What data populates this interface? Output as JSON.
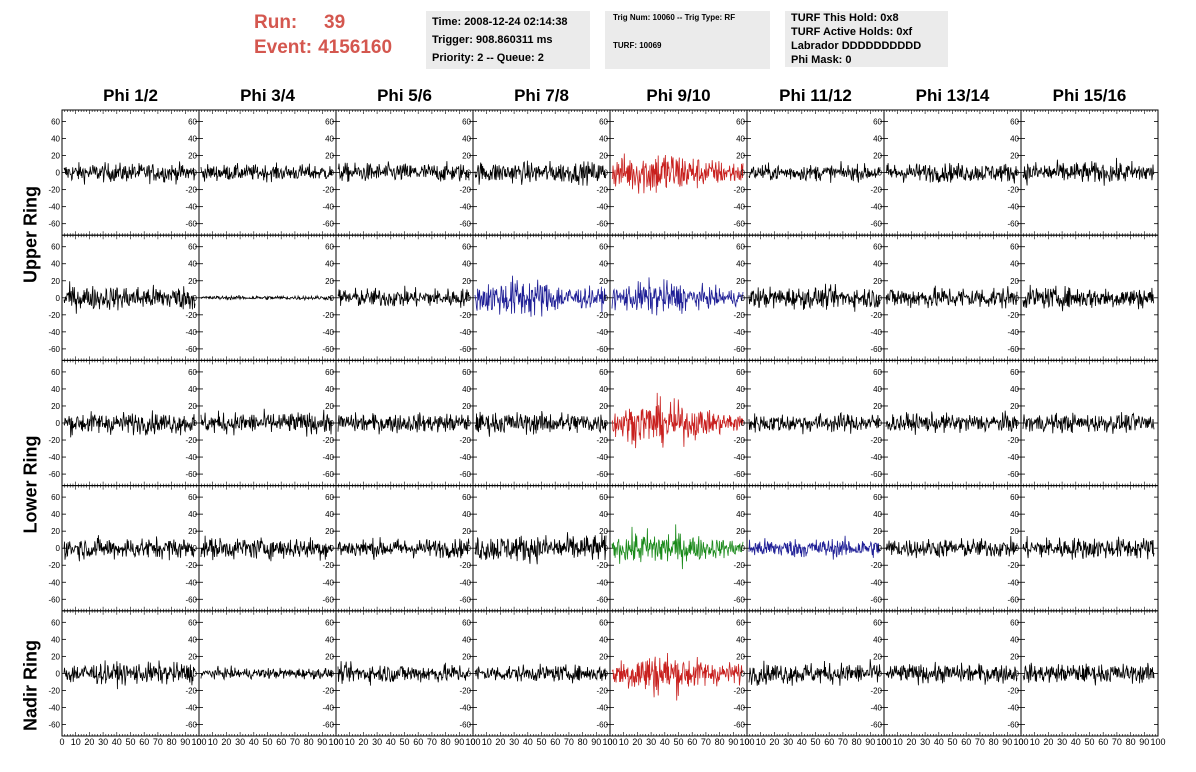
{
  "header": {
    "run_label": "Run:",
    "run_value": "39",
    "event_label": "Event:",
    "event_value": "4156160",
    "accent_color": "#d4574f"
  },
  "info_box_1": {
    "time": "Time: 2008-12-24 02:14:38",
    "trigger": "Trigger: 908.860311 ms",
    "priority": "Priority: 2 -- Queue: 2"
  },
  "info_box_2": {
    "trig": "Trig Num: 10060 -- Trig Type: RF",
    "turf": "TURF: 10069"
  },
  "info_box_3": {
    "hold": "TURF This Hold: 0x8",
    "active": "TURF Active Holds: 0xf",
    "labrador": "Labrador DDDDDDDDDD",
    "phimask": "Phi Mask: 0"
  },
  "columns": [
    "Phi 1/2",
    "Phi 3/4",
    "Phi 5/6",
    "Phi 7/8",
    "Phi 9/10",
    "Phi 11/12",
    "Phi 13/14",
    "Phi 15/16"
  ],
  "rows": [
    "Upper Ring",
    "Lower Ring",
    "Nadir Ring"
  ],
  "waveform_colors": {
    "normal": "#000000",
    "red": "#c8201e",
    "blue": "#1f1f96",
    "green": "#1a8a1a"
  },
  "chart_data": {
    "type": "line",
    "ylim": [
      -70,
      70
    ],
    "xlim": [
      0,
      100
    ],
    "y_ticks": [
      -60,
      -40,
      -20,
      0,
      20,
      40,
      60
    ],
    "x_ticks": [
      0,
      10,
      20,
      30,
      40,
      50,
      60,
      70,
      80,
      90,
      100
    ],
    "panel_rows": 5,
    "panel_cols": 8,
    "panel_colors": [
      [
        "normal",
        "normal",
        "normal",
        "normal",
        "red",
        "normal",
        "normal",
        "normal"
      ],
      [
        "normal",
        "normal",
        "normal",
        "blue",
        "blue",
        "normal",
        "normal",
        "normal"
      ],
      [
        "normal",
        "normal",
        "normal",
        "normal",
        "red",
        "normal",
        "normal",
        "normal"
      ],
      [
        "normal",
        "normal",
        "normal",
        "normal",
        "green",
        "blue",
        "normal",
        "normal"
      ],
      [
        "normal",
        "normal",
        "normal",
        "normal",
        "red",
        "normal",
        "normal",
        "normal"
      ]
    ],
    "panel_amplitude": [
      [
        14,
        12,
        14,
        16,
        28,
        12,
        14,
        16
      ],
      [
        18,
        3,
        14,
        24,
        20,
        16,
        16,
        16
      ],
      [
        16,
        16,
        14,
        16,
        26,
        14,
        14,
        14
      ],
      [
        16,
        16,
        14,
        20,
        22,
        14,
        14,
        16
      ],
      [
        16,
        8,
        14,
        12,
        26,
        16,
        14,
        14
      ]
    ]
  }
}
